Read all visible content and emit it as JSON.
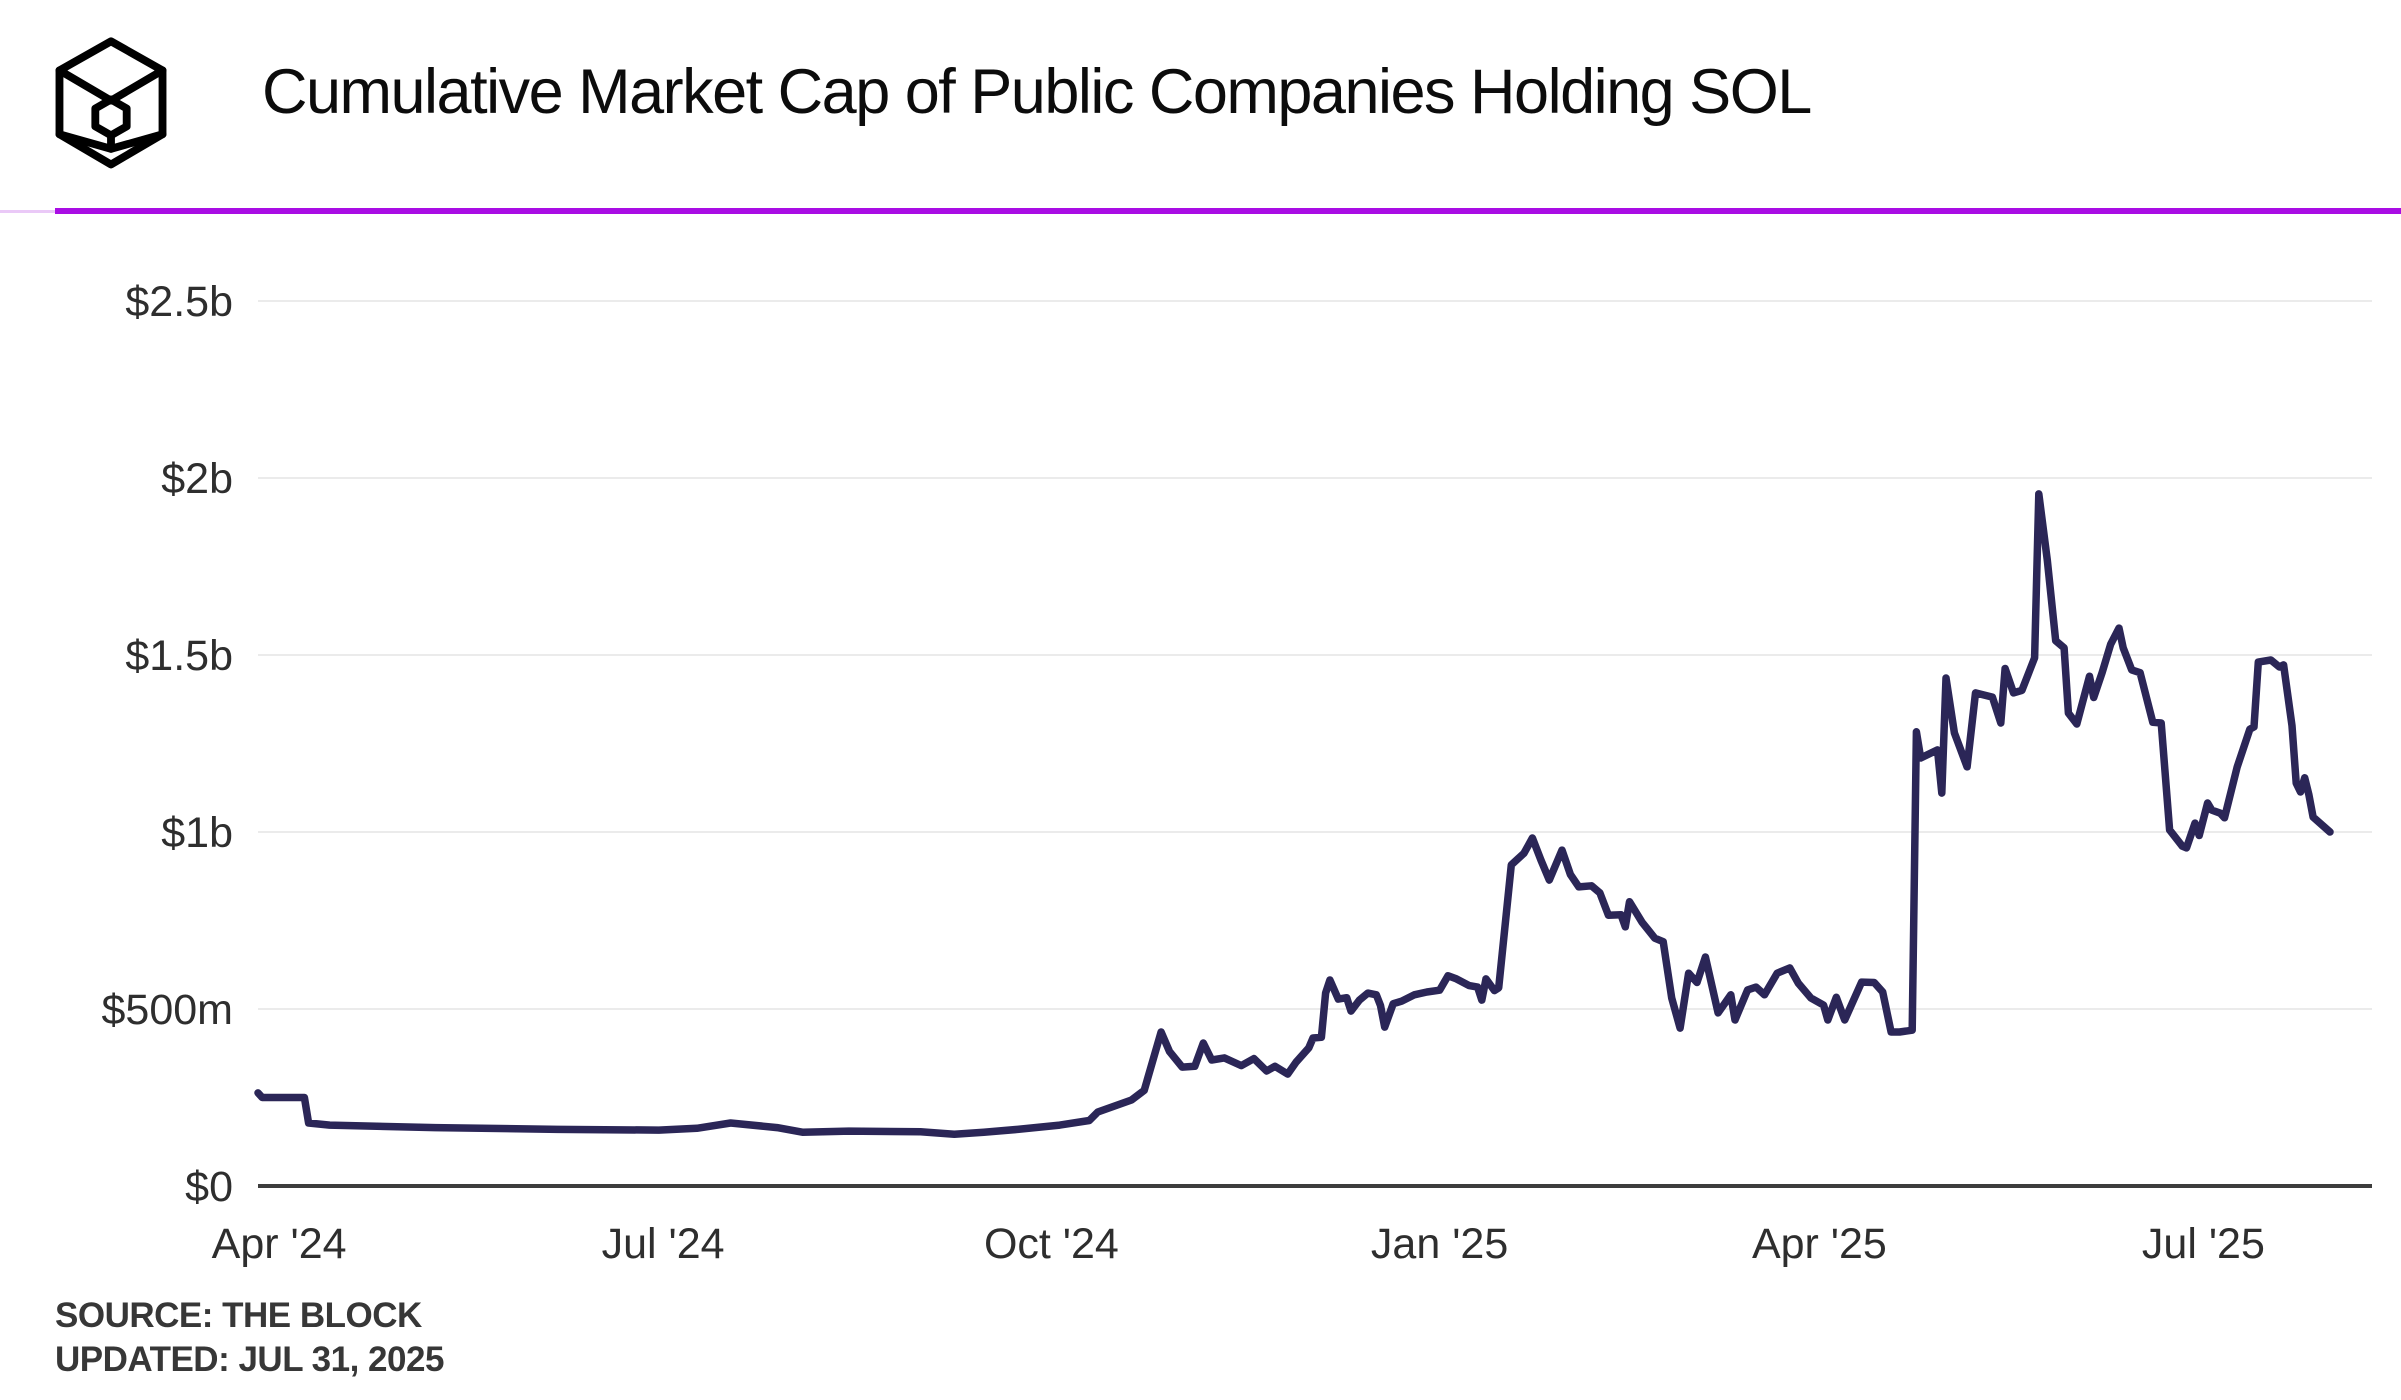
{
  "header": {
    "logo_name": "the-block-logo",
    "title": "Cumulative Market Cap of Public Companies Holding SOL"
  },
  "divider": {
    "main_color": "#a90de4",
    "light_color": "#eac9f7"
  },
  "footer": {
    "source": "SOURCE: THE BLOCK",
    "updated": "UPDATED: JUL 31, 2025"
  },
  "chart_data": {
    "type": "line",
    "title": "Cumulative Market Cap of Public Companies Holding SOL",
    "unit": "USD millions",
    "line_color": "#2b2657",
    "grid": true,
    "legend": "none",
    "y_axis": {
      "min": 0,
      "max": 2500,
      "ticks": [
        {
          "label": "$0",
          "value": 0
        },
        {
          "label": "$500m",
          "value": 500
        },
        {
          "label": "$1b",
          "value": 1000
        },
        {
          "label": "$1.5b",
          "value": 1500
        },
        {
          "label": "$2b",
          "value": 2000
        },
        {
          "label": "$2.5b",
          "value": 2500
        }
      ]
    },
    "x_axis": {
      "start_date": "2024-03-27",
      "end_date": "2025-07-31",
      "ticks": [
        {
          "label": "Apr '24",
          "date": "2024-04-01"
        },
        {
          "label": "Jul '24",
          "date": "2024-07-01"
        },
        {
          "label": "Oct '24",
          "date": "2024-10-01"
        },
        {
          "label": "Jan '25",
          "date": "2025-01-01"
        },
        {
          "label": "Apr '25",
          "date": "2025-04-01"
        },
        {
          "label": "Jul '25",
          "date": "2025-07-01"
        }
      ]
    },
    "series": [
      {
        "name": "Cumulative market cap of public companies holding SOL ($m)",
        "points": [
          [
            "2024-03-27",
            263
          ],
          [
            "2024-03-28",
            250
          ],
          [
            "2024-04-07",
            250
          ],
          [
            "2024-04-08",
            178
          ],
          [
            "2024-04-13",
            172
          ],
          [
            "2024-05-08",
            165
          ],
          [
            "2024-06-06",
            160
          ],
          [
            "2024-06-30",
            158
          ],
          [
            "2024-07-09",
            163
          ],
          [
            "2024-07-17",
            178
          ],
          [
            "2024-07-28",
            165
          ],
          [
            "2024-08-03",
            152
          ],
          [
            "2024-08-14",
            155
          ],
          [
            "2024-08-31",
            153
          ],
          [
            "2024-09-08",
            146
          ],
          [
            "2024-09-15",
            152
          ],
          [
            "2024-09-23",
            160
          ],
          [
            "2024-10-03",
            172
          ],
          [
            "2024-10-10",
            185
          ],
          [
            "2024-10-12",
            209
          ],
          [
            "2024-10-20",
            243
          ],
          [
            "2024-10-23",
            270
          ],
          [
            "2024-10-27",
            435
          ],
          [
            "2024-10-29",
            380
          ],
          [
            "2024-11-01",
            336
          ],
          [
            "2024-11-04",
            338
          ],
          [
            "2024-11-06",
            404
          ],
          [
            "2024-11-08",
            356
          ],
          [
            "2024-11-11",
            362
          ],
          [
            "2024-11-15",
            340
          ],
          [
            "2024-11-18",
            360
          ],
          [
            "2024-11-21",
            325
          ],
          [
            "2024-11-23",
            338
          ],
          [
            "2024-11-26",
            316
          ],
          [
            "2024-11-28",
            350
          ],
          [
            "2024-12-01",
            390
          ],
          [
            "2024-12-02",
            418
          ],
          [
            "2024-12-04",
            420
          ],
          [
            "2024-12-05",
            545
          ],
          [
            "2024-12-06",
            582
          ],
          [
            "2024-12-08",
            528
          ],
          [
            "2024-12-10",
            532
          ],
          [
            "2024-12-11",
            494
          ],
          [
            "2024-12-13",
            525
          ],
          [
            "2024-12-15",
            545
          ],
          [
            "2024-12-17",
            540
          ],
          [
            "2024-12-18",
            510
          ],
          [
            "2024-12-19",
            449
          ],
          [
            "2024-12-21",
            515
          ],
          [
            "2024-12-23",
            522
          ],
          [
            "2024-12-26",
            540
          ],
          [
            "2024-12-29",
            548
          ],
          [
            "2025-01-01",
            553
          ],
          [
            "2025-01-03",
            594
          ],
          [
            "2025-01-05",
            585
          ],
          [
            "2025-01-08",
            566
          ],
          [
            "2025-01-10",
            562
          ],
          [
            "2025-01-11",
            525
          ],
          [
            "2025-01-12",
            585
          ],
          [
            "2025-01-14",
            552
          ],
          [
            "2025-01-15",
            560
          ],
          [
            "2025-01-18",
            907
          ],
          [
            "2025-01-21",
            940
          ],
          [
            "2025-01-23",
            983
          ],
          [
            "2025-01-25",
            921
          ],
          [
            "2025-01-27",
            864
          ],
          [
            "2025-01-30",
            949
          ],
          [
            "2025-02-01",
            880
          ],
          [
            "2025-02-03",
            845
          ],
          [
            "2025-02-06",
            848
          ],
          [
            "2025-02-08",
            828
          ],
          [
            "2025-02-10",
            765
          ],
          [
            "2025-02-13",
            766
          ],
          [
            "2025-02-14",
            732
          ],
          [
            "2025-02-15",
            803
          ],
          [
            "2025-02-18",
            745
          ],
          [
            "2025-02-21",
            700
          ],
          [
            "2025-02-23",
            690
          ],
          [
            "2025-02-25",
            531
          ],
          [
            "2025-02-27",
            446
          ],
          [
            "2025-03-01",
            601
          ],
          [
            "2025-03-03",
            575
          ],
          [
            "2025-03-05",
            647
          ],
          [
            "2025-03-08",
            489
          ],
          [
            "2025-03-11",
            540
          ],
          [
            "2025-03-12",
            469
          ],
          [
            "2025-03-15",
            554
          ],
          [
            "2025-03-17",
            562
          ],
          [
            "2025-03-19",
            540
          ],
          [
            "2025-03-22",
            601
          ],
          [
            "2025-03-25",
            616
          ],
          [
            "2025-03-27",
            573
          ],
          [
            "2025-03-30",
            531
          ],
          [
            "2025-04-02",
            511
          ],
          [
            "2025-04-03",
            469
          ],
          [
            "2025-04-05",
            533
          ],
          [
            "2025-04-07",
            469
          ],
          [
            "2025-04-11",
            576
          ],
          [
            "2025-04-14",
            575
          ],
          [
            "2025-04-16",
            548
          ],
          [
            "2025-04-18",
            435
          ],
          [
            "2025-04-20",
            435
          ],
          [
            "2025-04-23",
            440
          ],
          [
            "2025-04-24",
            1283
          ],
          [
            "2025-04-25",
            1209
          ],
          [
            "2025-04-29",
            1232
          ],
          [
            "2025-04-30",
            1110
          ],
          [
            "2025-05-01",
            1435
          ],
          [
            "2025-05-03",
            1280
          ],
          [
            "2025-05-06",
            1184
          ],
          [
            "2025-05-08",
            1393
          ],
          [
            "2025-05-12",
            1381
          ],
          [
            "2025-05-14",
            1308
          ],
          [
            "2025-05-15",
            1462
          ],
          [
            "2025-05-17",
            1393
          ],
          [
            "2025-05-19",
            1400
          ],
          [
            "2025-05-22",
            1492
          ],
          [
            "2025-05-23",
            1955
          ],
          [
            "2025-05-25",
            1768
          ],
          [
            "2025-05-27",
            1540
          ],
          [
            "2025-05-29",
            1520
          ],
          [
            "2025-05-30",
            1336
          ],
          [
            "2025-06-01",
            1305
          ],
          [
            "2025-06-04",
            1440
          ],
          [
            "2025-06-05",
            1380
          ],
          [
            "2025-06-07",
            1450
          ],
          [
            "2025-06-09",
            1530
          ],
          [
            "2025-06-11",
            1576
          ],
          [
            "2025-06-12",
            1520
          ],
          [
            "2025-06-14",
            1458
          ],
          [
            "2025-06-16",
            1450
          ],
          [
            "2025-06-19",
            1310
          ],
          [
            "2025-06-21",
            1308
          ],
          [
            "2025-06-23",
            1006
          ],
          [
            "2025-06-26",
            960
          ],
          [
            "2025-06-27",
            955
          ],
          [
            "2025-06-29",
            1025
          ],
          [
            "2025-06-30",
            990
          ],
          [
            "2025-07-02",
            1082
          ],
          [
            "2025-07-03",
            1062
          ],
          [
            "2025-07-05",
            1053
          ],
          [
            "2025-07-06",
            1040
          ],
          [
            "2025-07-09",
            1184
          ],
          [
            "2025-07-12",
            1290
          ],
          [
            "2025-07-13",
            1297
          ],
          [
            "2025-07-14",
            1480
          ],
          [
            "2025-07-17",
            1486
          ],
          [
            "2025-07-19",
            1466
          ],
          [
            "2025-07-20",
            1472
          ],
          [
            "2025-07-22",
            1300
          ],
          [
            "2025-07-23",
            1138
          ],
          [
            "2025-07-24",
            1113
          ],
          [
            "2025-07-25",
            1153
          ],
          [
            "2025-07-26",
            1105
          ],
          [
            "2025-07-27",
            1042
          ],
          [
            "2025-07-31",
            1000
          ]
        ]
      }
    ]
  }
}
